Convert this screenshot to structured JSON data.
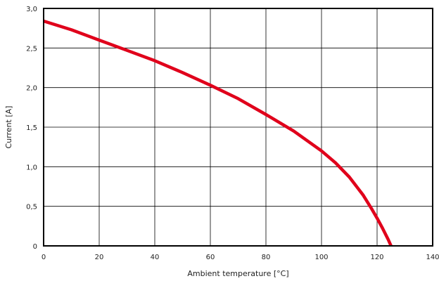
{
  "chart_data": {
    "type": "line",
    "xlabel": "Ambient temperature [°C]",
    "ylabel": "Current [A]",
    "xlim": [
      0,
      140
    ],
    "ylim": [
      0,
      3.0
    ],
    "grid": true,
    "x_ticks": [
      0,
      20,
      40,
      60,
      80,
      100,
      120,
      140
    ],
    "x_tick_labels": [
      "0",
      "20",
      "40",
      "60",
      "80",
      "100",
      "120",
      "140"
    ],
    "y_ticks": [
      0,
      0.5,
      1.0,
      1.5,
      2.0,
      2.5,
      3.0
    ],
    "y_tick_labels": [
      "0",
      "0,5",
      "1,0",
      "1,5",
      "2,0",
      "2,5",
      "3,0"
    ],
    "series": [
      {
        "color": "#e0001b",
        "x": [
          0,
          10,
          20,
          30,
          40,
          50,
          60,
          70,
          80,
          90,
          100,
          105,
          110,
          115,
          118,
          120,
          122,
          124,
          125
        ],
        "y": [
          2.84,
          2.73,
          2.6,
          2.47,
          2.34,
          2.19,
          2.03,
          1.86,
          1.66,
          1.45,
          1.2,
          1.05,
          0.87,
          0.64,
          0.47,
          0.35,
          0.22,
          0.08,
          0.0
        ]
      }
    ]
  }
}
